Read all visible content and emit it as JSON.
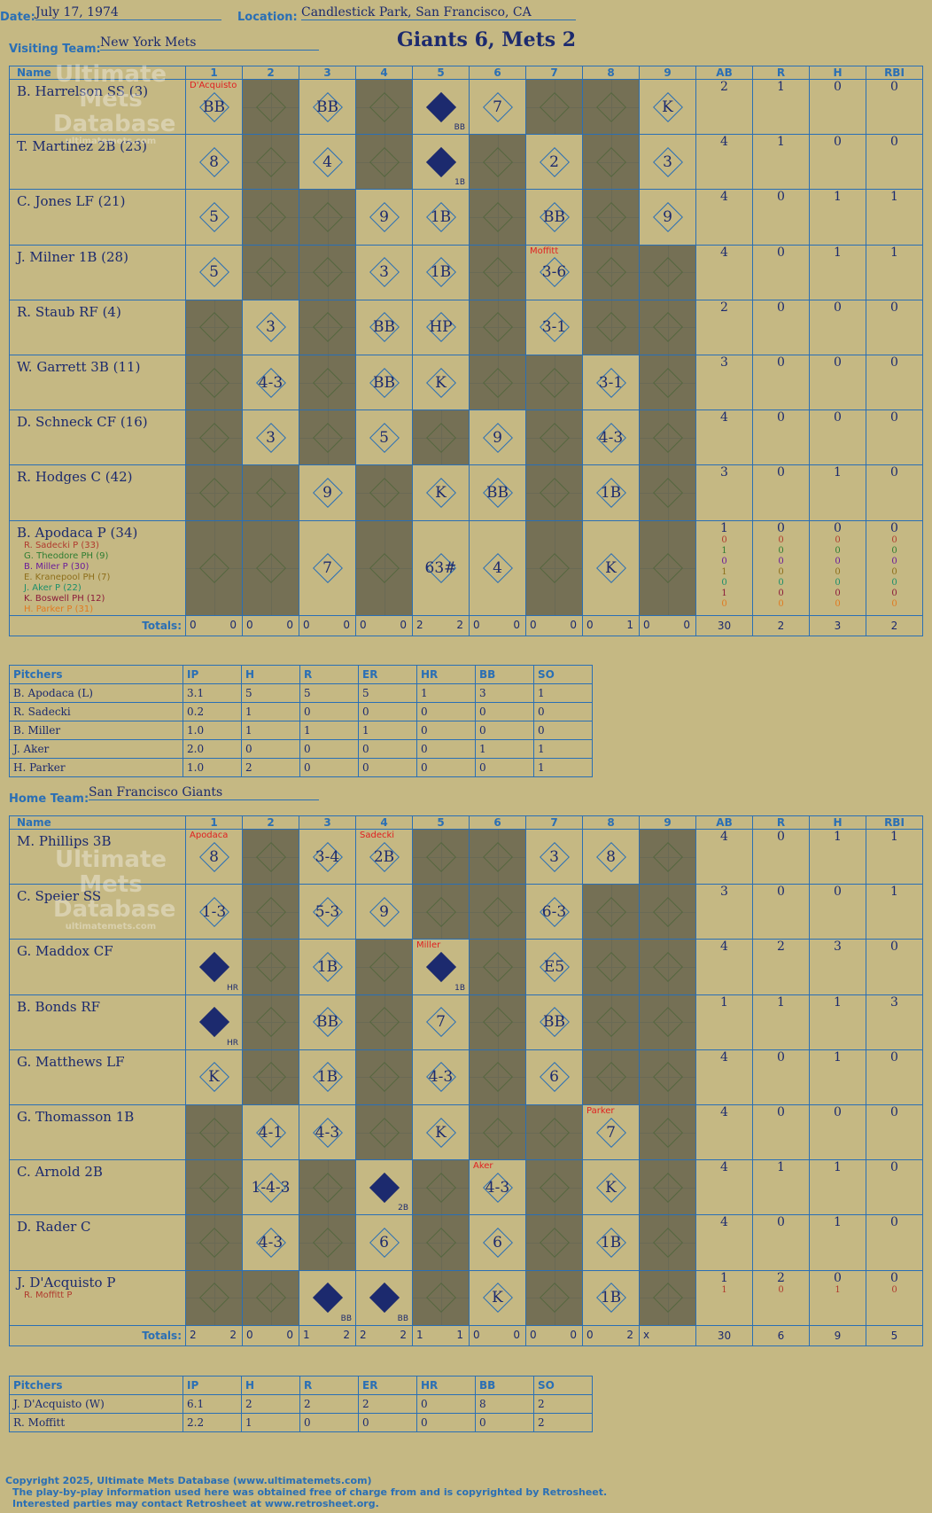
{
  "header": {
    "date_label": "Date:",
    "date": "July 17, 1974",
    "location_label": "Location:",
    "location": "Candlestick Park, San Francisco, CA",
    "visiting_label": "Visiting Team:",
    "visiting_team": "New York Mets",
    "title": "Giants 6, Mets 2",
    "home_label": "Home Team:",
    "home_team": "San Francisco Giants"
  },
  "watermark": {
    "line1": "Ultimate",
    "line2": "Mets",
    "line3": "Database",
    "url": "ultimatemets.com"
  },
  "columns": {
    "name": "Name",
    "innings": [
      "1",
      "2",
      "3",
      "4",
      "5",
      "6",
      "7",
      "8",
      "9"
    ],
    "stats": [
      "AB",
      "R",
      "H",
      "RBI"
    ]
  },
  "totals_label": "Totals:",
  "pitchers_header": [
    "Pitchers",
    "IP",
    "H",
    "R",
    "ER",
    "HR",
    "BB",
    "SO"
  ],
  "visitors": {
    "rows": [
      {
        "name": "B. Harrelson SS (3)",
        "ab": "2",
        "r": "1",
        "h": "0",
        "rbi": "0"
      },
      {
        "name": "T. Martinez 2B (23)",
        "ab": "4",
        "r": "1",
        "h": "0",
        "rbi": "0"
      },
      {
        "name": "C. Jones LF (21)",
        "ab": "4",
        "r": "0",
        "h": "1",
        "rbi": "1"
      },
      {
        "name": "J. Milner 1B (28)",
        "ab": "4",
        "r": "0",
        "h": "1",
        "rbi": "1"
      },
      {
        "name": "R. Staub RF (4)",
        "ab": "2",
        "r": "0",
        "h": "0",
        "rbi": "0"
      },
      {
        "name": "W. Garrett 3B (11)",
        "ab": "3",
        "r": "0",
        "h": "0",
        "rbi": "0"
      },
      {
        "name": "D. Schneck CF (16)",
        "ab": "4",
        "r": "0",
        "h": "0",
        "rbi": "0"
      },
      {
        "name": "R. Hodges C (42)",
        "ab": "3",
        "r": "0",
        "h": "1",
        "rbi": "0"
      },
      {
        "name": "B. Apodaca P (34)",
        "ab": "1",
        "r": "0",
        "h": "0",
        "rbi": "0"
      }
    ],
    "subs": [
      {
        "name": "R. Sadecki P (33)",
        "color": "#b03a2e"
      },
      {
        "name": "G. Theodore PH (9)",
        "color": "#2e7d32"
      },
      {
        "name": "B. Miller P (30)",
        "color": "#6a1b9a"
      },
      {
        "name": "E. Kranepool PH (7)",
        "color": "#8d6e1a"
      },
      {
        "name": "J. Aker P (22)",
        "color": "#1b8f6a"
      },
      {
        "name": "K. Boswell PH (12)",
        "color": "#8b1a3a"
      },
      {
        "name": "H. Parker P (31)",
        "color": "#e07a20"
      }
    ],
    "sub_stats": [
      [
        "0",
        "0",
        "0",
        "0"
      ],
      [
        "1",
        "0",
        "0",
        "0"
      ],
      [
        "0",
        "0",
        "0",
        "0"
      ],
      [
        "1",
        "0",
        "0",
        "0"
      ],
      [
        "0",
        "0",
        "0",
        "0"
      ],
      [
        "1",
        "0",
        "0",
        "0"
      ],
      [
        "0",
        "0",
        "0",
        "0"
      ]
    ],
    "totals": {
      "innings": [
        [
          "0",
          "0"
        ],
        [
          "0",
          "0"
        ],
        [
          "0",
          "0"
        ],
        [
          "0",
          "0"
        ],
        [
          "2",
          "2"
        ],
        [
          "0",
          "0"
        ],
        [
          "0",
          "0"
        ],
        [
          "0",
          "1"
        ],
        [
          "0",
          "0"
        ]
      ],
      "ab": "30",
      "r": "2",
      "h": "3",
      "rbi": "2"
    },
    "pitchers": [
      [
        "B. Apodaca (L)",
        "3.1",
        "5",
        "5",
        "5",
        "1",
        "3",
        "1"
      ],
      [
        "R. Sadecki",
        "0.2",
        "1",
        "0",
        "0",
        "0",
        "0",
        "0"
      ],
      [
        "B. Miller",
        "1.0",
        "1",
        "1",
        "1",
        "0",
        "0",
        "0"
      ],
      [
        "J. Aker",
        "2.0",
        "0",
        "0",
        "0",
        "0",
        "1",
        "1"
      ],
      [
        "H. Parker",
        "1.0",
        "2",
        "0",
        "0",
        "0",
        "0",
        "1"
      ]
    ]
  },
  "home": {
    "rows": [
      {
        "name": "M. Phillips 3B",
        "ab": "4",
        "r": "0",
        "h": "1",
        "rbi": "1"
      },
      {
        "name": "C. Speier SS",
        "ab": "3",
        "r": "0",
        "h": "0",
        "rbi": "1"
      },
      {
        "name": "G. Maddox CF",
        "ab": "4",
        "r": "2",
        "h": "3",
        "rbi": "0"
      },
      {
        "name": "B. Bonds RF",
        "ab": "1",
        "r": "1",
        "h": "1",
        "rbi": "3"
      },
      {
        "name": "G. Matthews LF",
        "ab": "4",
        "r": "0",
        "h": "1",
        "rbi": "0"
      },
      {
        "name": "G. Thomasson 1B",
        "ab": "4",
        "r": "0",
        "h": "0",
        "rbi": "0"
      },
      {
        "name": "C. Arnold 2B",
        "ab": "4",
        "r": "1",
        "h": "1",
        "rbi": "0"
      },
      {
        "name": "D. Rader C",
        "ab": "4",
        "r": "0",
        "h": "1",
        "rbi": "0"
      },
      {
        "name": "J. D'Acquisto P",
        "ab": "1",
        "r": "2",
        "h": "0",
        "rbi": "0"
      }
    ],
    "subs": [
      {
        "name": "R. Moffitt P",
        "color": "#b03a2e"
      }
    ],
    "sub_stats": [
      [
        "1",
        "0",
        "1",
        "0"
      ]
    ],
    "totals": {
      "innings": [
        [
          "2",
          "2"
        ],
        [
          "0",
          "0"
        ],
        [
          "1",
          "2"
        ],
        [
          "2",
          "2"
        ],
        [
          "1",
          "1"
        ],
        [
          "0",
          "0"
        ],
        [
          "0",
          "0"
        ],
        [
          "0",
          "2"
        ],
        [
          "x",
          ""
        ]
      ],
      "ab": "30",
      "r": "6",
      "h": "9",
      "rbi": "5"
    },
    "pitchers": [
      [
        "J. D'Acquisto (W)",
        "6.1",
        "2",
        "2",
        "2",
        "0",
        "8",
        "2"
      ],
      [
        "R. Moffitt",
        "2.2",
        "1",
        "0",
        "0",
        "0",
        "0",
        "2"
      ]
    ]
  },
  "visitor_plays": [
    [
      [
        "1",
        "BB",
        ""
      ],
      [
        "2",
        "",
        ""
      ],
      [
        "3",
        "BB",
        ""
      ],
      [
        "4",
        "",
        ""
      ],
      [
        "5",
        "BB",
        "run"
      ],
      [
        "6",
        "7",
        ""
      ],
      [
        "7",
        "",
        ""
      ],
      [
        "8",
        "",
        ""
      ],
      [
        "9",
        "K",
        ""
      ]
    ],
    [
      [
        "1",
        "8",
        ""
      ],
      [
        "2",
        "",
        ""
      ],
      [
        "3",
        "4",
        ""
      ],
      [
        "4",
        "",
        ""
      ],
      [
        "5",
        "1B",
        "run"
      ],
      [
        "6",
        "",
        ""
      ],
      [
        "7",
        "2",
        ""
      ],
      [
        "8",
        "",
        ""
      ],
      [
        "9",
        "3",
        ""
      ]
    ],
    [
      [
        "1",
        "5",
        ""
      ],
      [
        "2",
        "",
        ""
      ],
      [
        "3",
        "",
        ""
      ],
      [
        "4",
        "9",
        ""
      ],
      [
        "5",
        "1B",
        ""
      ],
      [
        "6",
        "",
        ""
      ],
      [
        "7",
        "BB",
        ""
      ],
      [
        "8",
        "",
        ""
      ],
      [
        "9",
        "9",
        ""
      ]
    ],
    [
      [
        "1",
        "5",
        ""
      ],
      [
        "2",
        "",
        ""
      ],
      [
        "3",
        "",
        ""
      ],
      [
        "4",
        "3",
        ""
      ],
      [
        "5",
        "1B",
        ""
      ],
      [
        "6",
        "",
        ""
      ],
      [
        "7",
        "3-6",
        ""
      ],
      [
        "8",
        "",
        ""
      ],
      [
        "9",
        "",
        ""
      ]
    ],
    [
      [
        "1",
        "",
        ""
      ],
      [
        "2",
        "3",
        ""
      ],
      [
        "3",
        "",
        ""
      ],
      [
        "4",
        "BB",
        ""
      ],
      [
        "5",
        "HP",
        ""
      ],
      [
        "6",
        "",
        ""
      ],
      [
        "7",
        "3-1",
        ""
      ],
      [
        "8",
        "",
        ""
      ],
      [
        "9",
        "",
        ""
      ]
    ],
    [
      [
        "1",
        "",
        ""
      ],
      [
        "2",
        "4-3",
        ""
      ],
      [
        "3",
        "",
        ""
      ],
      [
        "4",
        "BB",
        ""
      ],
      [
        "5",
        "K",
        ""
      ],
      [
        "6",
        "",
        ""
      ],
      [
        "7",
        "",
        ""
      ],
      [
        "8",
        "3-1",
        ""
      ],
      [
        "9",
        "",
        ""
      ]
    ],
    [
      [
        "1",
        "",
        ""
      ],
      [
        "2",
        "3",
        ""
      ],
      [
        "3",
        "",
        ""
      ],
      [
        "4",
        "5",
        ""
      ],
      [
        "5",
        "",
        ""
      ],
      [
        "6",
        "9",
        ""
      ],
      [
        "7",
        "",
        ""
      ],
      [
        "8",
        "4-3",
        ""
      ],
      [
        "9",
        "",
        ""
      ]
    ],
    [
      [
        "1",
        "",
        ""
      ],
      [
        "2",
        "",
        ""
      ],
      [
        "3",
        "9",
        ""
      ],
      [
        "4",
        "",
        ""
      ],
      [
        "5",
        "K",
        ""
      ],
      [
        "6",
        "BB",
        ""
      ],
      [
        "7",
        "",
        ""
      ],
      [
        "8",
        "1B",
        ""
      ],
      [
        "9",
        "",
        ""
      ]
    ],
    [
      [
        "1",
        "",
        ""
      ],
      [
        "2",
        "",
        ""
      ],
      [
        "3",
        "7",
        ""
      ],
      [
        "4",
        "",
        ""
      ],
      [
        "5",
        "63#",
        ""
      ],
      [
        "6",
        "4",
        ""
      ],
      [
        "7",
        "",
        ""
      ],
      [
        "8",
        "K",
        ""
      ],
      [
        "9",
        "",
        ""
      ]
    ]
  ],
  "home_plays": [
    [
      [
        "1",
        "8",
        ""
      ],
      [
        "2",
        "",
        ""
      ],
      [
        "3",
        "3-4",
        ""
      ],
      [
        "4",
        "2B",
        ""
      ],
      [
        "5",
        "",
        ""
      ],
      [
        "6",
        "",
        ""
      ],
      [
        "7",
        "3",
        ""
      ],
      [
        "8",
        "8",
        ""
      ],
      [
        "9",
        "",
        ""
      ]
    ],
    [
      [
        "1",
        "1-3",
        ""
      ],
      [
        "2",
        "",
        ""
      ],
      [
        "3",
        "5-3",
        ""
      ],
      [
        "4",
        "9",
        ""
      ],
      [
        "5",
        "",
        ""
      ],
      [
        "6",
        "",
        ""
      ],
      [
        "7",
        "6-3",
        ""
      ],
      [
        "8",
        "",
        ""
      ],
      [
        "9",
        "",
        ""
      ]
    ],
    [
      [
        "1",
        "HR",
        "run"
      ],
      [
        "2",
        "",
        ""
      ],
      [
        "3",
        "1B",
        ""
      ],
      [
        "4",
        "",
        ""
      ],
      [
        "5",
        "1B",
        "run"
      ],
      [
        "6",
        "",
        ""
      ],
      [
        "7",
        "E5",
        ""
      ],
      [
        "8",
        "",
        ""
      ],
      [
        "9",
        "",
        ""
      ]
    ],
    [
      [
        "1",
        "HR",
        "run"
      ],
      [
        "2",
        "",
        ""
      ],
      [
        "3",
        "BB",
        ""
      ],
      [
        "4",
        "",
        ""
      ],
      [
        "5",
        "7",
        ""
      ],
      [
        "6",
        "",
        ""
      ],
      [
        "7",
        "BB",
        ""
      ],
      [
        "8",
        "",
        ""
      ],
      [
        "9",
        "",
        ""
      ]
    ],
    [
      [
        "1",
        "K",
        ""
      ],
      [
        "2",
        "",
        ""
      ],
      [
        "3",
        "1B",
        ""
      ],
      [
        "4",
        "",
        ""
      ],
      [
        "5",
        "4-3",
        ""
      ],
      [
        "6",
        "",
        ""
      ],
      [
        "7",
        "6",
        ""
      ],
      [
        "8",
        "",
        ""
      ],
      [
        "9",
        "",
        ""
      ]
    ],
    [
      [
        "1",
        "",
        ""
      ],
      [
        "2",
        "4-1",
        ""
      ],
      [
        "3",
        "4-3",
        ""
      ],
      [
        "4",
        "",
        ""
      ],
      [
        "5",
        "K",
        ""
      ],
      [
        "6",
        "",
        ""
      ],
      [
        "7",
        "",
        ""
      ],
      [
        "8",
        "7",
        ""
      ],
      [
        "9",
        "",
        ""
      ]
    ],
    [
      [
        "1",
        "",
        ""
      ],
      [
        "2",
        "1-4-3",
        ""
      ],
      [
        "3",
        "",
        ""
      ],
      [
        "4",
        "2B",
        "run"
      ],
      [
        "5",
        "",
        ""
      ],
      [
        "6",
        "4-3",
        ""
      ],
      [
        "7",
        "",
        ""
      ],
      [
        "8",
        "K",
        ""
      ],
      [
        "9",
        "",
        ""
      ]
    ],
    [
      [
        "1",
        "",
        ""
      ],
      [
        "2",
        "4-3",
        ""
      ],
      [
        "3",
        "",
        ""
      ],
      [
        "4",
        "6",
        ""
      ],
      [
        "5",
        "",
        ""
      ],
      [
        "6",
        "6",
        ""
      ],
      [
        "7",
        "",
        ""
      ],
      [
        "8",
        "1B",
        ""
      ],
      [
        "9",
        "",
        ""
      ]
    ],
    [
      [
        "1",
        "",
        ""
      ],
      [
        "2",
        "",
        ""
      ],
      [
        "3",
        "BB",
        "run"
      ],
      [
        "4",
        "BB",
        "run"
      ],
      [
        "5",
        "",
        ""
      ],
      [
        "6",
        "K",
        ""
      ],
      [
        "7",
        "",
        ""
      ],
      [
        "8",
        "1B",
        ""
      ],
      [
        "9",
        "",
        ""
      ]
    ]
  ],
  "annotations": {
    "v_r1": "D'Acquisto",
    "v_r4": "Moffitt",
    "h_r1a": "Apodaca",
    "h_r1b": "Sadecki",
    "h_r3": "Miller",
    "h_r6": "Parker",
    "h_r7": "Aker"
  },
  "footer": {
    "line1": "Copyright 2025, Ultimate Mets Database (www.ultimatemets.com)",
    "line2": "The play-by-play information used here was obtained free of charge from and is copyrighted by Retrosheet.",
    "line3": "Interested parties may contact Retrosheet at www.retrosheet.org."
  }
}
